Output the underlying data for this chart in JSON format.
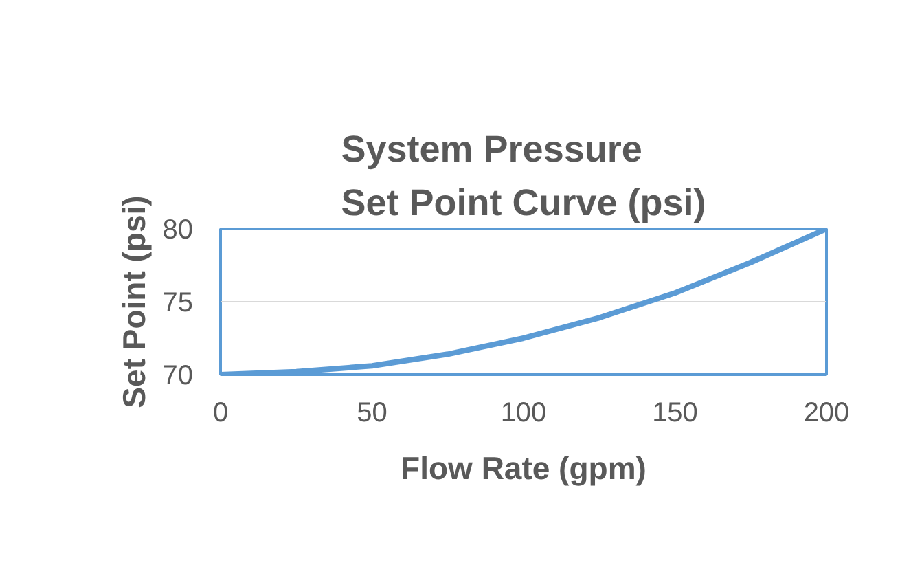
{
  "chart_data": {
    "type": "line",
    "title": "System Pressure Set Point Curve (psi)",
    "xlabel": "Flow Rate (gpm)",
    "ylabel": "Set Point (psi)",
    "x": [
      0,
      25,
      50,
      75,
      100,
      125,
      150,
      175,
      200
    ],
    "series": [
      {
        "color": "#5b9bd5",
        "values": [
          70,
          70.2,
          70.6,
          71.4,
          72.5,
          73.9,
          75.6,
          77.7,
          80
        ]
      }
    ],
    "xlim": [
      0,
      200
    ],
    "xticks": [
      0,
      50,
      100,
      150,
      200
    ],
    "ylim": [
      70,
      80
    ],
    "yticks": [
      70,
      75,
      80
    ],
    "grid": "y",
    "marker": "none",
    "line_style": "solid"
  }
}
